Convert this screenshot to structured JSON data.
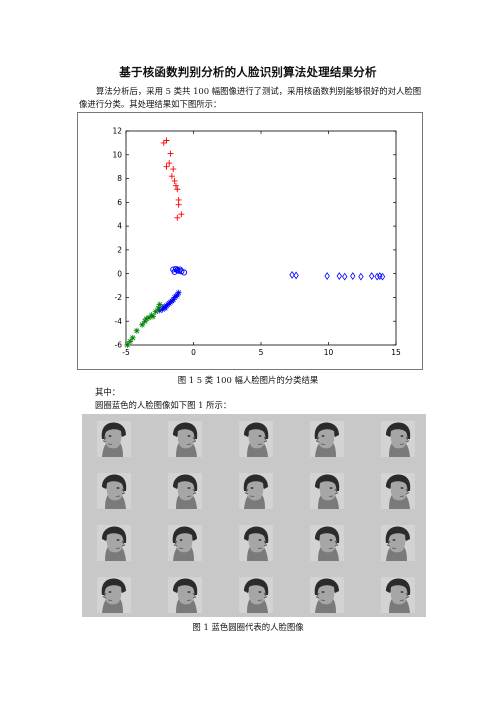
{
  "doc": {
    "title": "基于核函数判别分析的人脸识别算法处理结果分析",
    "intro": "算法分析后，采用 5 类共 100 幅图像进行了测试，采用核函数判别能够很好的对人脸图像进行分类。其处理结果如下图所示：",
    "caption1": "图 1    5 类 100 幅人脸图片的分类结果",
    "line_among": "其中：",
    "line_blue": "圆圈蓝色的人脸图像如下图 1 所示：",
    "caption2": "图 1  蓝色圆圈代表的人脸图像"
  },
  "chart_data": {
    "type": "scatter",
    "xlim": [
      -5,
      15
    ],
    "ylim": [
      -6,
      12
    ],
    "xticks": [
      "-5",
      "0",
      "5",
      "10",
      "15"
    ],
    "yticks": [
      "-6",
      "-4",
      "-2",
      "0",
      "2",
      "4",
      "6",
      "8",
      "10",
      "12"
    ],
    "grid": false,
    "series": [
      {
        "marker": "plus",
        "color": "#ff0000",
        "points": [
          [
            -2.2,
            11.0
          ],
          [
            -2.0,
            11.2
          ],
          [
            -1.7,
            10.1
          ],
          [
            -1.8,
            9.3
          ],
          [
            -2.0,
            9.0
          ],
          [
            -1.5,
            8.8
          ],
          [
            -1.6,
            8.2
          ],
          [
            -1.4,
            7.8
          ],
          [
            -1.3,
            7.4
          ],
          [
            -1.2,
            7.1
          ],
          [
            -1.1,
            6.2
          ],
          [
            -1.1,
            5.8
          ],
          [
            -0.9,
            5.0
          ],
          [
            -1.2,
            4.7
          ]
        ]
      },
      {
        "marker": "circle",
        "color": "#0000ff",
        "points": [
          [
            -1.5,
            0.35
          ],
          [
            -1.3,
            0.4
          ],
          [
            -1.2,
            0.3
          ],
          [
            -1.0,
            0.35
          ],
          [
            -0.9,
            0.2
          ],
          [
            -0.7,
            0.1
          ],
          [
            -1.4,
            0.15
          ],
          [
            -1.1,
            0.25
          ]
        ]
      },
      {
        "marker": "diamond",
        "color": "#0000ff",
        "points": [
          [
            7.3,
            -0.1
          ],
          [
            7.6,
            -0.15
          ],
          [
            9.9,
            -0.2
          ],
          [
            10.8,
            -0.2
          ],
          [
            11.2,
            -0.25
          ],
          [
            11.8,
            -0.2
          ],
          [
            12.4,
            -0.25
          ],
          [
            13.2,
            -0.2
          ],
          [
            13.6,
            -0.25
          ],
          [
            13.8,
            -0.2
          ],
          [
            14.0,
            -0.25
          ]
        ]
      },
      {
        "marker": "star",
        "color": "#0000ff",
        "points": [
          [
            -1.1,
            -1.6
          ],
          [
            -1.2,
            -1.8
          ],
          [
            -1.3,
            -1.9
          ],
          [
            -1.4,
            -2.0
          ],
          [
            -1.5,
            -2.2
          ],
          [
            -1.6,
            -2.3
          ],
          [
            -1.7,
            -2.4
          ],
          [
            -1.8,
            -2.5
          ],
          [
            -2.0,
            -2.7
          ],
          [
            -2.2,
            -2.8
          ],
          [
            -2.3,
            -3.0
          ],
          [
            -2.5,
            -3.1
          ],
          [
            -1.9,
            -2.6
          ],
          [
            -2.1,
            -2.9
          ]
        ]
      },
      {
        "marker": "star",
        "color": "#008000",
        "points": [
          [
            -2.5,
            -2.6
          ],
          [
            -2.6,
            -2.9
          ],
          [
            -2.8,
            -3.2
          ],
          [
            -3.1,
            -3.5
          ],
          [
            -3.3,
            -3.7
          ],
          [
            -3.5,
            -3.8
          ],
          [
            -3.0,
            -3.6
          ],
          [
            -3.8,
            -4.3
          ],
          [
            -4.2,
            -4.8
          ],
          [
            -4.5,
            -5.4
          ],
          [
            -4.7,
            -5.7
          ],
          [
            -3.6,
            -4.0
          ],
          [
            -4.9,
            -6.0
          ]
        ]
      }
    ]
  },
  "face_grid": {
    "rows": 4,
    "cols": 5,
    "background": "#c8c8c8"
  }
}
